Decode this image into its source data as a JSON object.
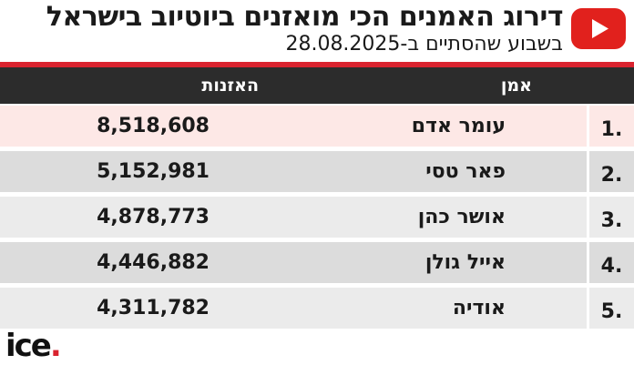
{
  "title": "דירוג האמנים הכי מואזנים ביוטיוב בישראל",
  "subtitle": "בשבוע שהסתיים ב-28.08.2025",
  "brand_icon": "youtube-icon",
  "logo": {
    "text": "ice",
    "dot": "."
  },
  "colors": {
    "accent_red": "#d9232f",
    "header_bg": "#2c2c2c",
    "highlight_row": "#fde8e6",
    "row_bg_a": "#dcdcdc",
    "row_bg_b": "#ebebeb"
  },
  "chart_data": {
    "type": "table",
    "columns": [
      "אמן",
      "האזנות"
    ],
    "rows": [
      {
        "rank": "1.",
        "artist": "עומר אדם",
        "views": "8,518,608",
        "value": 8518608
      },
      {
        "rank": "2.",
        "artist": "פאר טסי",
        "views": "5,152,981",
        "value": 5152981
      },
      {
        "rank": "3.",
        "artist": "אושר כהן",
        "views": "4,878,773",
        "value": 4878773
      },
      {
        "rank": "4.",
        "artist": "אייל גולן",
        "views": "4,446,882",
        "value": 4446882
      },
      {
        "rank": "5.",
        "artist": "אודיה",
        "views": "4,311,782",
        "value": 4311782
      }
    ]
  }
}
